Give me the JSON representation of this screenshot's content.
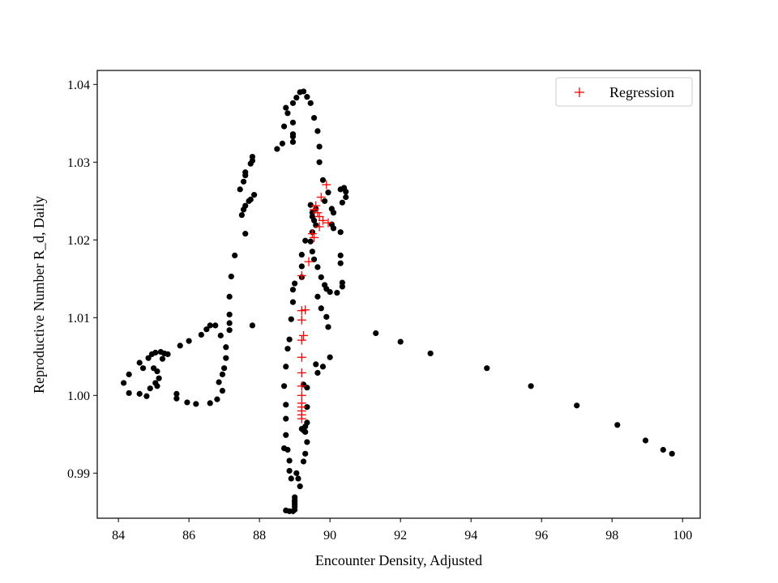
{
  "chart_data": {
    "type": "scatter",
    "title": "",
    "xlabel": "Encounter Density, Adjusted",
    "ylabel": "Reproductive Number R_d, Daily",
    "xlim": [
      83.4,
      100.5
    ],
    "ylim": [
      0.9842,
      1.0418
    ],
    "xticks": [
      84,
      86,
      88,
      90,
      92,
      94,
      96,
      98,
      100
    ],
    "xtick_labels": [
      "84",
      "86",
      "88",
      "90",
      "92",
      "94",
      "96",
      "98",
      "100"
    ],
    "yticks": [
      0.99,
      1.0,
      1.01,
      1.02,
      1.03,
      1.04
    ],
    "ytick_labels": [
      "0.99",
      "1.00",
      "1.01",
      "1.02",
      "1.03",
      "1.04"
    ],
    "grid": false,
    "legend": {
      "position": "top-right",
      "entries": [
        "Regression"
      ]
    },
    "series": [
      {
        "name": "Observed",
        "marker": "filled-circle",
        "color": "#000000",
        "in_legend": false,
        "points": [
          [
            84.15,
            1.0016
          ],
          [
            84.3,
            1.0003
          ],
          [
            84.3,
            1.0027
          ],
          [
            84.6,
            1.0002
          ],
          [
            84.6,
            1.0042
          ],
          [
            84.7,
            1.0035
          ],
          [
            84.8,
            0.9999
          ],
          [
            84.85,
            1.0048
          ],
          [
            84.95,
            1.0053
          ],
          [
            84.9,
            1.0009
          ],
          [
            85.05,
            1.0055
          ],
          [
            85.0,
            1.0035
          ],
          [
            85.05,
            1.0016
          ],
          [
            85.1,
            1.0031
          ],
          [
            85.15,
            1.0022
          ],
          [
            85.1,
            1.0012
          ],
          [
            85.2,
            1.0056
          ],
          [
            85.3,
            1.0054
          ],
          [
            85.25,
            1.0047
          ],
          [
            85.4,
            1.0053
          ],
          [
            85.65,
            1.0002
          ],
          [
            85.65,
            0.9996
          ],
          [
            85.95,
            0.9991
          ],
          [
            86.2,
            0.9989
          ],
          [
            86.6,
            0.999
          ],
          [
            86.8,
            0.9995
          ],
          [
            86.95,
            1.0006
          ],
          [
            86.85,
            1.0017
          ],
          [
            86.95,
            1.0027
          ],
          [
            87.0,
            1.0035
          ],
          [
            87.05,
            1.0048
          ],
          [
            87.05,
            1.0062
          ],
          [
            86.9,
            1.0077
          ],
          [
            86.75,
            1.009
          ],
          [
            86.6,
            1.009
          ],
          [
            86.5,
            1.0085
          ],
          [
            86.35,
            1.0078
          ],
          [
            86.0,
            1.007
          ],
          [
            85.75,
            1.0064
          ],
          [
            87.15,
            1.0084
          ],
          [
            87.15,
            1.0093
          ],
          [
            87.15,
            1.0104
          ],
          [
            87.15,
            1.0127
          ],
          [
            87.2,
            1.0153
          ],
          [
            87.3,
            1.018
          ],
          [
            87.6,
            1.0208
          ],
          [
            87.5,
            1.0232
          ],
          [
            87.55,
            1.0239
          ],
          [
            87.6,
            1.0244
          ],
          [
            87.7,
            1.025
          ],
          [
            87.75,
            1.0252
          ],
          [
            87.85,
            1.0258
          ],
          [
            87.45,
            1.0265
          ],
          [
            87.55,
            1.0275
          ],
          [
            87.6,
            1.0283
          ],
          [
            87.6,
            1.0287
          ],
          [
            87.75,
            1.0298
          ],
          [
            87.8,
            1.0302
          ],
          [
            87.8,
            1.0307
          ],
          [
            87.8,
            1.009
          ],
          [
            88.5,
            1.0317
          ],
          [
            88.65,
            1.0324
          ],
          [
            88.7,
            1.0346
          ],
          [
            88.8,
            1.0363
          ],
          [
            88.75,
            1.037
          ],
          [
            88.95,
            1.0376
          ],
          [
            88.95,
            1.0351
          ],
          [
            88.95,
            1.0336
          ],
          [
            88.95,
            1.0333
          ],
          [
            88.95,
            1.0326
          ],
          [
            89.05,
            1.0383
          ],
          [
            89.15,
            1.039
          ],
          [
            89.25,
            1.0391
          ],
          [
            89.35,
            1.0384
          ],
          [
            89.45,
            1.0376
          ],
          [
            89.55,
            1.0357
          ],
          [
            89.65,
            1.034
          ],
          [
            89.7,
            1.032
          ],
          [
            89.7,
            1.03
          ],
          [
            89.8,
            1.0277
          ],
          [
            89.95,
            1.0261
          ],
          [
            89.85,
            1.025
          ],
          [
            90.05,
            1.024
          ],
          [
            90.1,
            1.0235
          ],
          [
            90.3,
            1.0265
          ],
          [
            90.4,
            1.0267
          ],
          [
            90.45,
            1.0262
          ],
          [
            90.45,
            1.0255
          ],
          [
            90.35,
            1.0248
          ],
          [
            90.05,
            1.022
          ],
          [
            90.1,
            1.0215
          ],
          [
            90.3,
            1.021
          ],
          [
            90.3,
            1.018
          ],
          [
            90.3,
            1.017
          ],
          [
            90.35,
            1.0145
          ],
          [
            90.35,
            1.014
          ],
          [
            90.2,
            1.0132
          ],
          [
            90.0,
            1.0133
          ],
          [
            89.9,
            1.0137
          ],
          [
            89.85,
            1.0142
          ],
          [
            89.75,
            1.0152
          ],
          [
            89.65,
            1.0165
          ],
          [
            89.55,
            1.0175
          ],
          [
            89.5,
            1.0185
          ],
          [
            89.45,
            1.0198
          ],
          [
            89.5,
            1.021
          ],
          [
            89.55,
            1.0225
          ],
          [
            89.5,
            1.0235
          ],
          [
            89.6,
            1.024
          ],
          [
            89.45,
            1.0245
          ],
          [
            89.5,
            1.023
          ],
          [
            89.6,
            1.0219
          ],
          [
            89.3,
            1.0199
          ],
          [
            89.2,
            1.0181
          ],
          [
            89.2,
            1.0166
          ],
          [
            89.2,
            1.0152
          ],
          [
            89.0,
            1.0144
          ],
          [
            88.95,
            1.0136
          ],
          [
            88.95,
            1.012
          ],
          [
            88.9,
            1.0098
          ],
          [
            88.85,
            1.0072
          ],
          [
            88.8,
            1.006
          ],
          [
            88.75,
            1.0037
          ],
          [
            88.7,
            1.0012
          ],
          [
            88.75,
            0.9988
          ],
          [
            88.75,
            0.997
          ],
          [
            88.75,
            0.9949
          ],
          [
            88.7,
            0.9932
          ],
          [
            88.8,
            0.993
          ],
          [
            88.85,
            0.9916
          ],
          [
            88.85,
            0.9903
          ],
          [
            88.9,
            0.9893
          ],
          [
            89.05,
            0.99
          ],
          [
            89.1,
            0.9893
          ],
          [
            89.15,
            0.9883
          ],
          [
            89.0,
            0.9869
          ],
          [
            89.0,
            0.9865
          ],
          [
            89.0,
            0.9863
          ],
          [
            89.0,
            0.986
          ],
          [
            89.0,
            0.9857
          ],
          [
            89.0,
            0.9853
          ],
          [
            88.95,
            0.9851
          ],
          [
            88.85,
            0.9851
          ],
          [
            88.75,
            0.9852
          ],
          [
            89.25,
            0.9915
          ],
          [
            89.3,
            0.9925
          ],
          [
            89.35,
            0.994
          ],
          [
            89.3,
            0.9953
          ],
          [
            89.25,
            0.9955
          ],
          [
            89.2,
            0.9957
          ],
          [
            89.3,
            0.996
          ],
          [
            89.35,
            0.9965
          ],
          [
            89.35,
            0.9985
          ],
          [
            89.35,
            1.001
          ],
          [
            89.25,
            1.0014
          ],
          [
            89.65,
            1.0029
          ],
          [
            89.6,
            1.004
          ],
          [
            89.8,
            1.0037
          ],
          [
            90.0,
            1.0049
          ],
          [
            89.95,
            1.0088
          ],
          [
            89.9,
            1.0101
          ],
          [
            89.75,
            1.0112
          ],
          [
            89.65,
            1.0127
          ],
          [
            91.3,
            1.008
          ],
          [
            92.0,
            1.0069
          ],
          [
            92.85,
            1.0054
          ],
          [
            94.45,
            1.0035
          ],
          [
            95.7,
            1.0012
          ],
          [
            97.0,
            0.9987
          ],
          [
            98.15,
            0.9962
          ],
          [
            98.95,
            0.9942
          ],
          [
            99.45,
            0.993
          ],
          [
            99.7,
            0.9925
          ]
        ]
      },
      {
        "name": "Regression",
        "marker": "plus",
        "color": "#ff0000",
        "in_legend": true,
        "points": [
          [
            89.9,
            1.0271
          ],
          [
            89.75,
            1.0255
          ],
          [
            89.6,
            1.0244
          ],
          [
            89.55,
            1.0239
          ],
          [
            89.65,
            1.0235
          ],
          [
            89.7,
            1.023
          ],
          [
            89.8,
            1.0225
          ],
          [
            89.95,
            1.0222
          ],
          [
            89.7,
            1.0217
          ],
          [
            89.5,
            1.0208
          ],
          [
            89.55,
            1.0203
          ],
          [
            89.4,
            1.0172
          ],
          [
            89.2,
            1.0154
          ],
          [
            89.2,
            1.0109
          ],
          [
            89.3,
            1.011
          ],
          [
            89.2,
            1.0097
          ],
          [
            89.25,
            1.0077
          ],
          [
            89.2,
            1.0071
          ],
          [
            89.2,
            1.0049
          ],
          [
            89.2,
            1.0029
          ],
          [
            89.2,
            1.0012
          ],
          [
            89.2,
            1.0
          ],
          [
            89.2,
            0.999
          ],
          [
            89.2,
            0.9985
          ],
          [
            89.2,
            0.998
          ],
          [
            89.2,
            0.9975
          ],
          [
            89.2,
            0.997
          ]
        ]
      }
    ]
  }
}
